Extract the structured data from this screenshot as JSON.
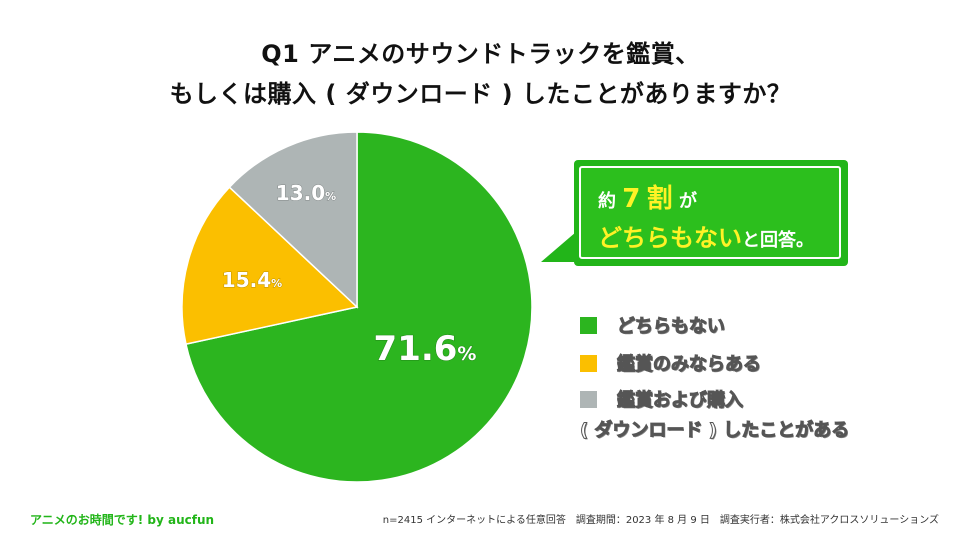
{
  "title": {
    "line1": "Q1  アニメのサウンドトラックを鑑賞、",
    "line2": "もしくは購入 ( ダウンロード ) したことがありますか？"
  },
  "chart_data": {
    "type": "pie",
    "title": "Q1  アニメのサウンドトラックを鑑賞、もしくは購入 ( ダウンロード ) したことがありますか？",
    "slices": [
      {
        "label": "どちらもない",
        "value": 71.6,
        "color": "#2cb51f"
      },
      {
        "label": "鑑賞のみならある",
        "value": 15.4,
        "color": "#fbbf00"
      },
      {
        "label": "鑑賞および購入 ( ダウンロード ) したことがある",
        "value": 13.0,
        "color": "#aeb5b5"
      }
    ],
    "unit": "%",
    "start_angle": "12 o'clock",
    "direction": "clockwise"
  },
  "callout": {
    "pre": "約",
    "number": "7",
    "suffix": "割",
    "particle": "が",
    "highlight": "どちらもない",
    "tail": "と回答。"
  },
  "legend": [
    {
      "line1": "どちらもない",
      "line2": ""
    },
    {
      "line1": "鑑賞のみならある",
      "line2": ""
    },
    {
      "line1": "鑑賞および購入",
      "line2": "( ダウンロード ) したことがある"
    }
  ],
  "footer": {
    "left": "アニメのお時間です! by aucfun",
    "right": "n=2415 インターネットによる任意回答　調査期間：2023 年 8 月 9 日　調査実行者：株式会社アクロスソリューションズ"
  }
}
